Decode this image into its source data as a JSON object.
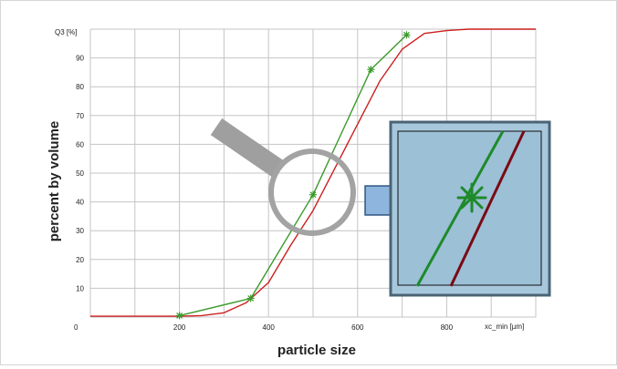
{
  "chart_data": {
    "type": "line",
    "title": "",
    "xlabel": "particle size",
    "ylabel": "percent by volume",
    "x_axis_name": "xc_min [µm]",
    "y_axis_name": "Q3 [%]",
    "xlim": [
      0,
      1000
    ],
    "ylim": [
      0,
      100
    ],
    "x_ticks": [
      200,
      400,
      600,
      800
    ],
    "y_ticks": [
      0,
      10,
      20,
      30,
      40,
      50,
      60,
      70,
      80,
      90
    ],
    "grid": true,
    "series": [
      {
        "color": "#cc1f1f",
        "marker": "none",
        "x": [
          0,
          200,
          250,
          300,
          350,
          400,
          450,
          500,
          550,
          600,
          650,
          700,
          750,
          800,
          850,
          900,
          1000
        ],
        "y": [
          0.3,
          0.3,
          0.5,
          1.5,
          5,
          12,
          25,
          37,
          52,
          67,
          82,
          93,
          98.5,
          99.5,
          100,
          100,
          100
        ]
      },
      {
        "color": "#3a9a2a",
        "marker": "asterisk",
        "x": [
          200,
          360,
          500,
          630,
          710
        ],
        "y": [
          0.5,
          6.5,
          42.5,
          86,
          98
        ]
      }
    ]
  },
  "overlay": {
    "magnifier_icon": "magnifying-glass",
    "arrow_icon": "arrow-right",
    "zoom_inset": {
      "background": "#a7c8dc",
      "green_line_color": "#1e8a2a",
      "red_line_color": "#7a0a14",
      "marker": "asterisk"
    }
  }
}
